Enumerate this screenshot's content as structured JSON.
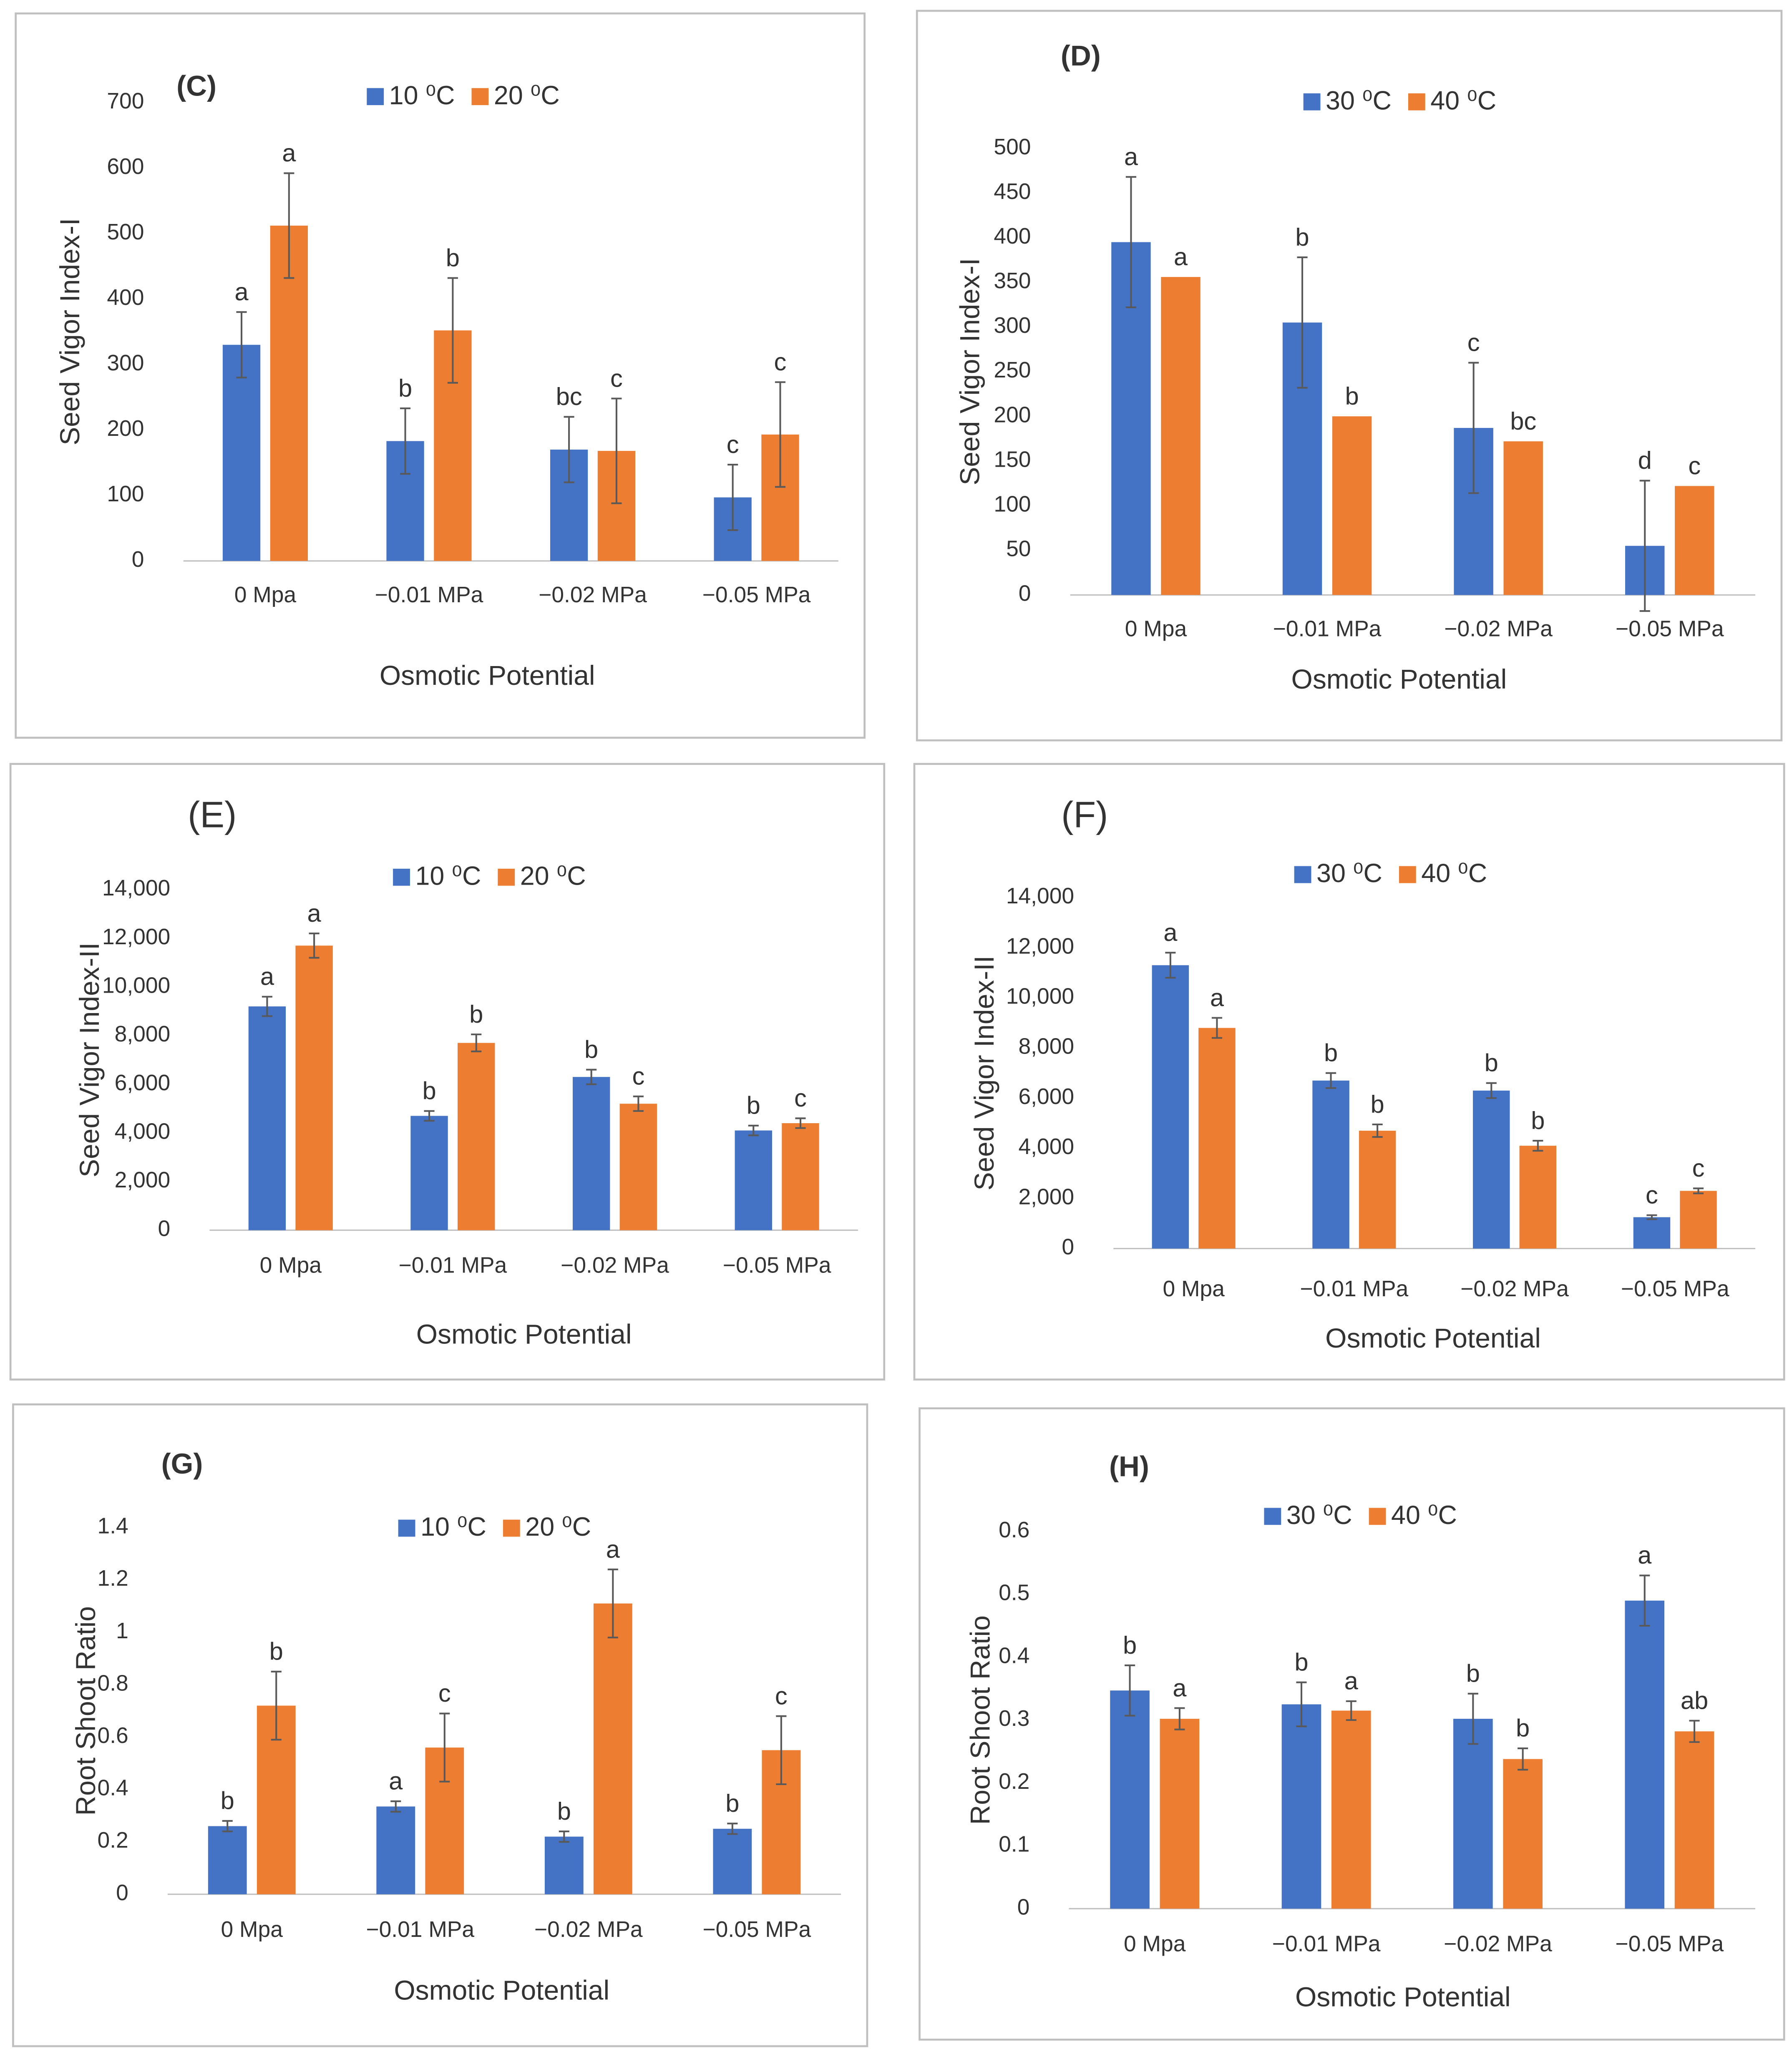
{
  "chart_data": [
    {
      "type": "bar",
      "title": "(C)",
      "y_label": "Seed Vigor Index-I",
      "x_label": "Osmotic Potential",
      "categories": [
        "0 Mpa",
        "−0.01 MPa",
        "−0.02 MPa",
        "−0.05 MPa"
      ],
      "series": [
        {
          "name": "10 ⁰C",
          "color": "#4472c4",
          "values": [
            330,
            183,
            170,
            97
          ],
          "errors": [
            50,
            50,
            50,
            50
          ],
          "letters": [
            "a",
            "b",
            "bc",
            "c"
          ]
        },
        {
          "name": "20 ⁰C",
          "color": "#ed7d31",
          "values": [
            512,
            352,
            168,
            193
          ],
          "errors": [
            80,
            80,
            80,
            80
          ],
          "letters": [
            "a",
            "b",
            "c",
            "c"
          ]
        }
      ],
      "ylim": [
        0,
        700
      ],
      "yticks": [
        0,
        100,
        200,
        300,
        400,
        500,
        600,
        700
      ]
    },
    {
      "type": "bar",
      "title": "(D)",
      "y_label": "Seed Vigor Index-I",
      "x_label": "Osmotic Potential",
      "categories": [
        "0 Mpa",
        "−0.01 MPa",
        "−0.02 MPa",
        "−0.05 MPa"
      ],
      "series": [
        {
          "name": "30 ⁰C",
          "color": "#4472c4",
          "values": [
            395,
            305,
            187,
            55
          ],
          "errors": [
            73,
            73,
            73,
            73
          ],
          "letters": [
            "a",
            "b",
            "c",
            "d"
          ]
        },
        {
          "name": "40 ⁰C",
          "color": "#ed7d31",
          "values": [
            356,
            200,
            172,
            122
          ],
          "errors": [
            null,
            null,
            null,
            null
          ],
          "letters": [
            "a",
            "b",
            "bc",
            "c"
          ]
        }
      ],
      "ylim": [
        0,
        500
      ],
      "yticks": [
        0,
        50,
        100,
        150,
        200,
        250,
        300,
        350,
        400,
        450,
        500
      ]
    },
    {
      "type": "bar",
      "title": "(E)",
      "y_label": "Seed Vigor Index-II",
      "x_label": "Osmotic Potential",
      "categories": [
        "0 Mpa",
        "−0.01 MPa",
        "−0.02 MPa",
        "−0.05 MPa"
      ],
      "series": [
        {
          "name": "10 ⁰C",
          "color": "#4472c4",
          "values": [
            9200,
            4700,
            6300,
            4100
          ],
          "errors": [
            400,
            200,
            300,
            200
          ],
          "letters": [
            "a",
            "b",
            "b",
            "b"
          ]
        },
        {
          "name": "20 ⁰C",
          "color": "#ed7d31",
          "values": [
            11700,
            7700,
            5200,
            4400
          ],
          "errors": [
            500,
            350,
            300,
            200
          ],
          "letters": [
            "a",
            "b",
            "c",
            "c"
          ]
        }
      ],
      "ylim": [
        0,
        14000
      ],
      "yticks": [
        0,
        {
          "value": 2000,
          "label": "2,000"
        },
        {
          "value": 4000,
          "label": "4,000"
        },
        {
          "value": 6000,
          "label": "6,000"
        },
        {
          "value": 8000,
          "label": "8,000"
        },
        {
          "value": 10000,
          "label": "10,000"
        },
        {
          "value": 12000,
          "label": "12,000"
        },
        {
          "value": 14000,
          "label": "14,000"
        }
      ]
    },
    {
      "type": "bar",
      "title": "(F)",
      "y_label": "Seed Vigor Index-II",
      "x_label": "Osmotic Potential",
      "categories": [
        "0 Mpa",
        "−0.01 MPa",
        "−0.02 MPa",
        "−0.05 MPa"
      ],
      "series": [
        {
          "name": "30 ⁰C",
          "color": "#4472c4",
          "values": [
            11300,
            6700,
            6300,
            1250
          ],
          "errors": [
            500,
            300,
            300,
            80
          ],
          "letters": [
            "a",
            "b",
            "b",
            "c"
          ]
        },
        {
          "name": "40 ⁰C",
          "color": "#ed7d31",
          "values": [
            8800,
            4700,
            4100,
            2300
          ],
          "errors": [
            400,
            250,
            200,
            100
          ],
          "letters": [
            "a",
            "b",
            "b",
            "c"
          ]
        }
      ],
      "ylim": [
        0,
        14000
      ],
      "yticks": [
        0,
        {
          "value": 2000,
          "label": "2,000"
        },
        {
          "value": 4000,
          "label": "4,000"
        },
        {
          "value": 6000,
          "label": "6,000"
        },
        {
          "value": 8000,
          "label": "8,000"
        },
        {
          "value": 10000,
          "label": "10,000"
        },
        {
          "value": 12000,
          "label": "12,000"
        },
        {
          "value": 14000,
          "label": "14,000"
        }
      ]
    },
    {
      "type": "bar",
      "title": "(G)",
      "y_label": "Root Shoot Ratio",
      "x_label": "Osmotic Potential",
      "categories": [
        "0 Mpa",
        "−0.01 MPa",
        "−0.02 MPa",
        "−0.05 MPa"
      ],
      "series": [
        {
          "name": "10 ⁰C",
          "color": "#4472c4",
          "values": [
            0.26,
            0.335,
            0.22,
            0.25
          ],
          "errors": [
            0.02,
            0.02,
            0.02,
            0.02
          ],
          "letters": [
            "b",
            "a",
            "b",
            "b"
          ]
        },
        {
          "name": "20 ⁰C",
          "color": "#ed7d31",
          "values": [
            0.72,
            0.56,
            1.11,
            0.55
          ],
          "errors": [
            0.13,
            0.13,
            0.13,
            0.13
          ],
          "letters": [
            "b",
            "c",
            "a",
            "c"
          ]
        }
      ],
      "ylim": [
        0,
        1.4
      ],
      "yticks": [
        0,
        0.2,
        0.4,
        0.6,
        0.8,
        1,
        1.2,
        1.4
      ]
    },
    {
      "type": "bar",
      "title": "(H)",
      "y_label": "Root Shoot Ratio",
      "x_label": "Osmotic Potential",
      "categories": [
        "0 Mpa",
        "−0.01 MPa",
        "−0.02 MPa",
        "−0.05 MPa"
      ],
      "series": [
        {
          "name": "30 ⁰C",
          "color": "#4472c4",
          "values": [
            0.347,
            0.325,
            0.302,
            0.49
          ],
          "errors": [
            0.04,
            0.035,
            0.04,
            0.04
          ],
          "letters": [
            "b",
            "b",
            "b",
            "a"
          ]
        },
        {
          "name": "40 ⁰C",
          "color": "#ed7d31",
          "values": [
            0.302,
            0.315,
            0.238,
            0.282
          ],
          "errors": [
            0.017,
            0.015,
            0.017,
            0.017
          ],
          "letters": [
            "a",
            "a",
            "b",
            "ab"
          ]
        }
      ],
      "ylim": [
        0,
        0.6
      ],
      "yticks": [
        0,
        0.1,
        0.2,
        0.3,
        0.4,
        0.5,
        0.6
      ]
    }
  ]
}
